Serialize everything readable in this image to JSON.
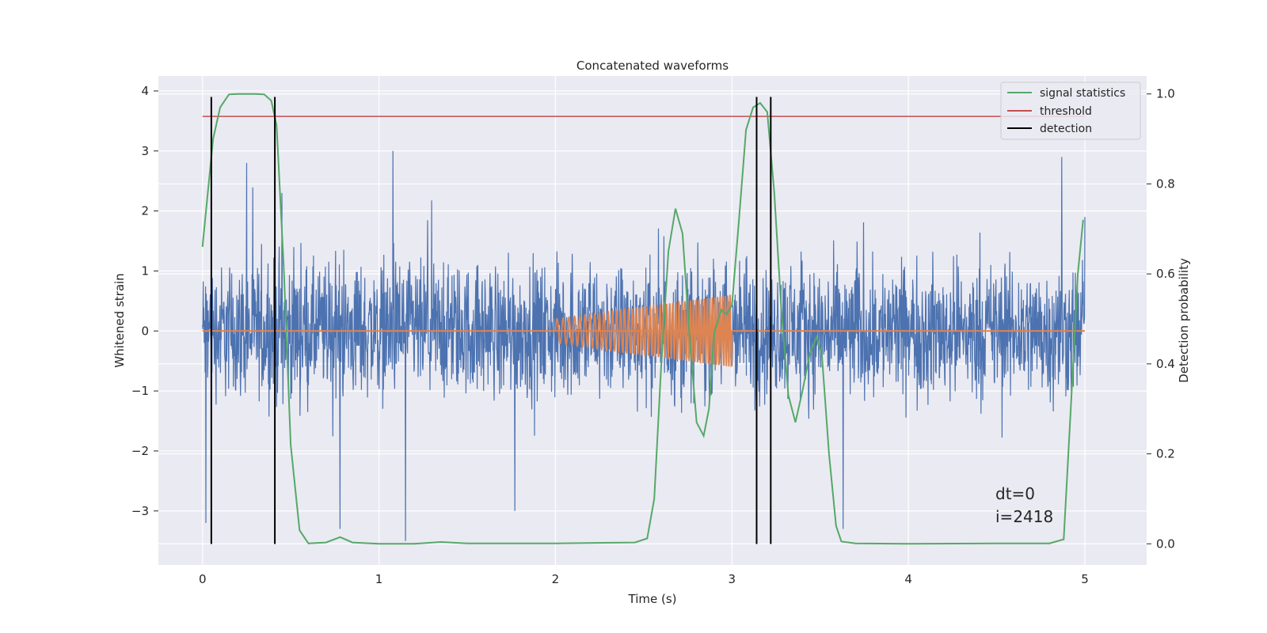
{
  "chart_data": {
    "type": "line",
    "title": "Concatenated waveforms",
    "xlabel": "Time (s)",
    "ylabel": "Whitened strain",
    "y2label": "Detection probability",
    "xlim": [
      -0.25,
      5.35
    ],
    "ylim": [
      -3.9,
      4.25
    ],
    "y2lim": [
      -0.047,
      1.04
    ],
    "xticks": [
      0,
      1,
      2,
      3,
      4,
      5
    ],
    "yticks": [
      -3,
      -2,
      -1,
      0,
      1,
      2,
      3,
      4
    ],
    "y2ticks": [
      0.0,
      0.2,
      0.4,
      0.6,
      0.8,
      1.0
    ],
    "xtick_labels": [
      "0",
      "1",
      "2",
      "3",
      "4",
      "5"
    ],
    "ytick_labels": [
      "−3",
      "−2",
      "−1",
      "0",
      "1",
      "2",
      "3",
      "4"
    ],
    "y2tick_labels": [
      "0.0",
      "0.2",
      "0.4",
      "0.6",
      "0.8",
      "1.0"
    ],
    "grid": true,
    "legend_position": "top-right",
    "colors": {
      "strain": "#4c72b0",
      "injected_signal": "#dd8452",
      "signal_statistics": "#55a868",
      "threshold": "#c44e52",
      "detection": "#000000",
      "plot_background": "#eaeaf2",
      "grid": "#ffffff"
    },
    "series": [
      {
        "name": "signal statistics",
        "axis": "right",
        "x": [
          0.0,
          0.03,
          0.06,
          0.1,
          0.15,
          0.2,
          0.3,
          0.35,
          0.39,
          0.42,
          0.46,
          0.5,
          0.55,
          0.6,
          0.7,
          0.78,
          0.85,
          1.0,
          1.2,
          1.35,
          1.5,
          2.0,
          2.45,
          2.52,
          2.56,
          2.6,
          2.64,
          2.68,
          2.72,
          2.76,
          2.8,
          2.84,
          2.87,
          2.9,
          2.94,
          2.97,
          3.0,
          3.04,
          3.08,
          3.12,
          3.16,
          3.2,
          3.24,
          3.28,
          3.32,
          3.36,
          3.4,
          3.44,
          3.48,
          3.51,
          3.55,
          3.59,
          3.62,
          3.7,
          4.0,
          4.5,
          4.8,
          4.88,
          4.92,
          4.96,
          4.99
        ],
        "values": [
          0.66,
          0.78,
          0.9,
          0.97,
          0.999,
          1.0,
          1.0,
          0.999,
          0.985,
          0.93,
          0.62,
          0.22,
          0.03,
          0.001,
          0.003,
          0.015,
          0.003,
          0.0,
          0.0,
          0.004,
          0.001,
          0.001,
          0.003,
          0.012,
          0.1,
          0.4,
          0.65,
          0.745,
          0.69,
          0.46,
          0.27,
          0.24,
          0.3,
          0.47,
          0.52,
          0.51,
          0.53,
          0.72,
          0.92,
          0.97,
          0.98,
          0.96,
          0.78,
          0.52,
          0.33,
          0.27,
          0.34,
          0.42,
          0.46,
          0.42,
          0.2,
          0.04,
          0.005,
          0.001,
          0.0,
          0.001,
          0.001,
          0.01,
          0.3,
          0.6,
          0.72
        ]
      },
      {
        "name": "threshold",
        "axis": "right",
        "x": [
          0.0,
          5.0
        ],
        "values": [
          0.95,
          0.95
        ]
      },
      {
        "name": "detection",
        "axis": "left",
        "x": [
          0.05,
          0.41,
          3.14,
          3.22
        ],
        "y_range": [
          -3.55,
          3.9
        ]
      }
    ],
    "strain_series": {
      "axis": "left",
      "x_range": [
        0.0,
        5.0
      ],
      "typical_amplitude": [
        -1.5,
        1.6
      ],
      "extremes": [
        -3.5,
        3.9
      ],
      "peaks": [
        {
          "x": 0.02,
          "y": -3.2
        },
        {
          "x": 0.25,
          "y": 2.8
        },
        {
          "x": 0.45,
          "y": 2.3
        },
        {
          "x": 0.78,
          "y": -3.3
        },
        {
          "x": 1.08,
          "y": 3.0
        },
        {
          "x": 1.15,
          "y": -3.5
        },
        {
          "x": 1.77,
          "y": -3.0
        },
        {
          "x": 3.22,
          "y": 3.9
        },
        {
          "x": 3.63,
          "y": -3.3
        },
        {
          "x": 4.87,
          "y": 2.9
        },
        {
          "x": 5.0,
          "y": 1.9
        }
      ]
    },
    "injected_signal": {
      "axis": "left",
      "x_range": [
        2.0,
        3.0
      ],
      "baseline": 0.0,
      "amplitude_start": 0.2,
      "amplitude_end": 0.6,
      "cycles": 50
    },
    "legend": [
      "signal statistics",
      "threshold",
      "detection"
    ],
    "annotations": [
      "dt=0",
      "i=2418"
    ]
  }
}
